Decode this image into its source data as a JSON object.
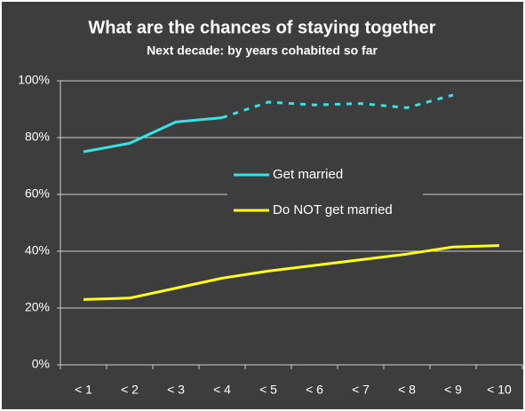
{
  "chart_data": {
    "type": "line",
    "title": "What are the chances of staying together",
    "subtitle": "Next decade: by years cohabited so far",
    "categories": [
      "< 1",
      "< 2",
      "< 3",
      "< 4",
      "< 5",
      "< 6",
      "< 7",
      "< 8",
      "< 9",
      "< 10"
    ],
    "series": [
      {
        "name": "Get married",
        "color": "#33e6e6",
        "values": [
          75,
          78,
          85.5,
          87,
          92.5,
          91.5,
          92,
          90.5,
          95,
          null
        ],
        "dashed_from": 3
      },
      {
        "name": "Do NOT get married",
        "color": "#ffff1a",
        "values": [
          23,
          23.5,
          27,
          30.5,
          33,
          35,
          37,
          39,
          41.5,
          42
        ]
      }
    ],
    "ylim": [
      0,
      100
    ],
    "yticks": [
      {
        "value": 0,
        "label": "0%"
      },
      {
        "value": 20,
        "label": "20%"
      },
      {
        "value": 40,
        "label": "40%"
      },
      {
        "value": 60,
        "label": "60%"
      },
      {
        "value": 80,
        "label": "80%"
      },
      {
        "value": 100,
        "label": "100%"
      }
    ],
    "grid": true
  }
}
